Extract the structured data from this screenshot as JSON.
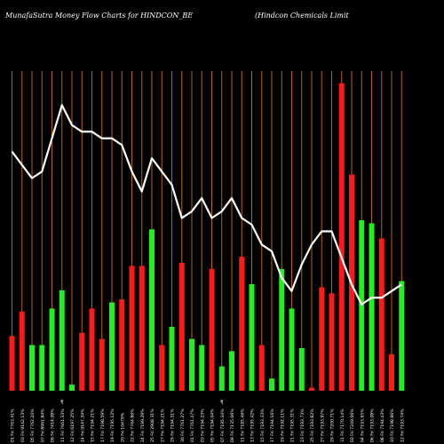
{
  "header": {
    "title": "MunafaSutra  Money Flow  Charts for HINDCON_BE",
    "subtitle": "(Hindcon  Chemicals Limit"
  },
  "colors": {
    "background": "#000000",
    "grid": "#b8650a",
    "up": "#22ee22",
    "down": "#ff1a1a",
    "line": "#ffffff",
    "text": "#ffffff"
  },
  "chart_data": {
    "type": "bar",
    "series": [
      {
        "name": "",
        "kind": "bar",
        "values": [
          18,
          26,
          15,
          15,
          27,
          33,
          2,
          19,
          27,
          17,
          29,
          30,
          41,
          41,
          53,
          15,
          21,
          42,
          17,
          15,
          40,
          8,
          13,
          44,
          35,
          15,
          4,
          40,
          27,
          14,
          1,
          34,
          32,
          101,
          71,
          56,
          55,
          50,
          12,
          36
        ]
      },
      {
        "name": "",
        "kind": "line",
        "values": [
          86,
          84,
          82,
          83,
          88,
          93,
          90,
          89,
          89,
          88,
          88,
          87,
          83,
          80,
          85,
          83,
          81,
          76,
          77,
          79,
          76,
          77,
          79,
          76,
          75,
          72,
          71,
          67,
          65,
          69,
          72,
          74,
          74,
          70,
          66,
          63,
          64,
          64,
          65,
          66
        ]
      }
    ],
    "bar_directions": [
      "down",
      "down",
      "up",
      "up",
      "up",
      "up",
      "up",
      "down",
      "down",
      "down",
      "up",
      "down",
      "down",
      "down",
      "up",
      "down",
      "up",
      "down",
      "up",
      "up",
      "down",
      "up",
      "up",
      "down",
      "up",
      "down",
      "up",
      "up",
      "up",
      "up",
      "down",
      "down",
      "down",
      "down",
      "down",
      "up",
      "up",
      "down",
      "down",
      "up"
    ],
    "x_labels": [
      "01 Fri 7763.41%",
      "03 Fri 9142.13%",
      "05 Fri 7762.24%",
      "07 Fri 8961.84%",
      "09 Fri 7414.08%",
      "11 Fri 7661.33%",
      "12 Fri 6197.25%",
      "14 Fri 9147.34%",
      "15 Fri 7194.21%",
      "17 Fri 7198.59%",
      "19 Fri 7195.12%",
      "20 Fri 10479%",
      "22 Fri 7764.86%",
      "24 Fri 7199.29%",
      "25 Fri 2908.31%",
      "27 Fri 7194.21%",
      "29 Fri 7194.31%",
      "30 Fri 7761.27%",
      "01 Fri 7761.47%",
      "03 Fri 7194.23%",
      "05 Fri 7194.04%",
      "07 Fri 7195.34%",
      "09 Fri 7135.06%",
      "11 Fri 7185.46%",
      "13 Fri 7195.42%",
      "15 Fri 7193.33%",
      "17 Fri 7194.16%",
      "19 Fri 7192.11%",
      "21 Fri 7195.31%",
      "23 Fri 7193.73%",
      "25 Fri 7193.82%",
      "27 Fri 7193.97%",
      "29 Fri 7200.71%",
      "31 Fri 7170.14%",
      "02 Fri 7249.06%",
      "04 Fri 7193.65%",
      "06 Fri 7193.08%",
      "08 Fri 7194.43%",
      "10 Fri 7198.86%",
      "12 Fri 7193.74%"
    ],
    "markers": [
      {
        "index": 5,
        "text": "₹"
      },
      {
        "index": 21,
        "text": "₹"
      }
    ],
    "bar_ylim": [
      0,
      105
    ],
    "line_ylim": [
      50,
      100
    ],
    "grid": true,
    "legend": "none"
  }
}
